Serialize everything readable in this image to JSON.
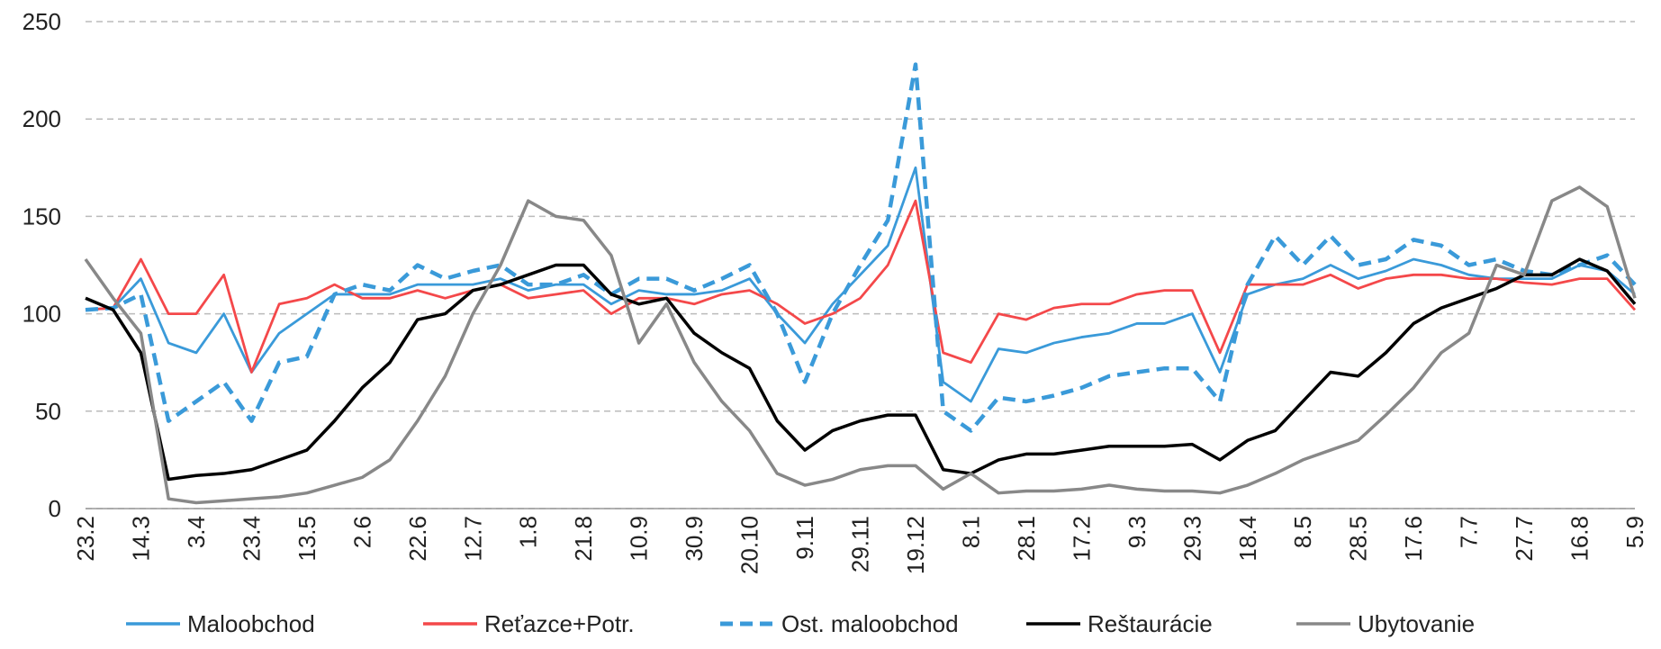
{
  "chart_data": {
    "type": "line",
    "categories": [
      "23.2",
      null,
      "14.3",
      null,
      "3.4",
      null,
      "23.4",
      null,
      "13.5",
      null,
      "2.6",
      null,
      "22.6",
      null,
      "12.7",
      null,
      "1.8",
      null,
      "21.8",
      null,
      "10.9",
      null,
      "30.9",
      null,
      "20.10",
      null,
      "9.11",
      null,
      "29.11",
      null,
      "19.12",
      null,
      "8.1",
      null,
      "28.1",
      null,
      "17.2",
      null,
      "9.3",
      null,
      "29.3",
      null,
      "18.4",
      null,
      "8.5",
      null,
      "28.5",
      null,
      "17.6",
      null,
      "7.7",
      null,
      "27.7",
      null,
      "16.8",
      null,
      "5.9"
    ],
    "ylim": [
      0,
      250
    ],
    "yticks": [
      0,
      50,
      100,
      150,
      200,
      250
    ],
    "grid": true,
    "legend": "bottom",
    "series": [
      {
        "name": "Maloobchod",
        "color": "#3a9ad9",
        "dashed": false,
        "values": [
          102,
          103,
          118,
          85,
          80,
          100,
          70,
          90,
          100,
          110,
          110,
          110,
          115,
          115,
          115,
          118,
          112,
          115,
          115,
          105,
          112,
          110,
          110,
          112,
          118,
          100,
          85,
          105,
          120,
          135,
          175,
          65,
          55,
          82,
          80,
          85,
          88,
          90,
          95,
          95,
          100,
          70,
          110,
          115,
          118,
          125,
          118,
          122,
          128,
          125,
          120,
          118,
          118,
          118,
          125,
          122,
          110
        ]
      },
      {
        "name": "Reťazce+Potr.",
        "color": "#f4484a",
        "dashed": false,
        "values": [
          102,
          103,
          128,
          100,
          100,
          120,
          70,
          105,
          108,
          115,
          108,
          108,
          112,
          108,
          112,
          115,
          108,
          110,
          112,
          100,
          108,
          108,
          105,
          110,
          112,
          105,
          95,
          100,
          108,
          125,
          158,
          80,
          75,
          100,
          97,
          103,
          105,
          105,
          110,
          112,
          112,
          80,
          115,
          115,
          115,
          120,
          113,
          118,
          120,
          120,
          118,
          118,
          116,
          115,
          118,
          118,
          102
        ]
      },
      {
        "name": "Ost. maloobchod",
        "color": "#3a9ad9",
        "dashed": true,
        "values": [
          102,
          103,
          110,
          45,
          55,
          65,
          45,
          75,
          78,
          110,
          115,
          112,
          125,
          118,
          122,
          125,
          115,
          115,
          120,
          110,
          118,
          118,
          112,
          118,
          125,
          100,
          65,
          100,
          125,
          148,
          228,
          50,
          40,
          57,
          55,
          58,
          62,
          68,
          70,
          72,
          72,
          55,
          115,
          140,
          125,
          140,
          125,
          128,
          138,
          135,
          125,
          128,
          122,
          120,
          125,
          130,
          115
        ]
      },
      {
        "name": "Reštaurácie",
        "color": "#000000",
        "dashed": false,
        "values": [
          108,
          102,
          80,
          15,
          17,
          18,
          20,
          25,
          30,
          45,
          62,
          75,
          97,
          100,
          112,
          115,
          120,
          125,
          125,
          110,
          105,
          108,
          90,
          80,
          72,
          45,
          30,
          40,
          45,
          48,
          48,
          20,
          18,
          25,
          28,
          28,
          30,
          32,
          32,
          32,
          33,
          25,
          35,
          40,
          55,
          70,
          68,
          80,
          95,
          103,
          108,
          113,
          120,
          120,
          128,
          122,
          105
        ]
      },
      {
        "name": "Ubytovanie",
        "color": "#888888",
        "dashed": false,
        "values": [
          128,
          108,
          90,
          5,
          3,
          4,
          5,
          6,
          8,
          12,
          16,
          25,
          45,
          68,
          100,
          125,
          158,
          150,
          148,
          130,
          85,
          105,
          75,
          55,
          40,
          18,
          12,
          15,
          20,
          22,
          22,
          10,
          18,
          8,
          9,
          9,
          10,
          12,
          10,
          9,
          9,
          8,
          12,
          18,
          25,
          30,
          35,
          48,
          62,
          80,
          90,
          125,
          120,
          158,
          165,
          155,
          108
        ]
      }
    ]
  }
}
